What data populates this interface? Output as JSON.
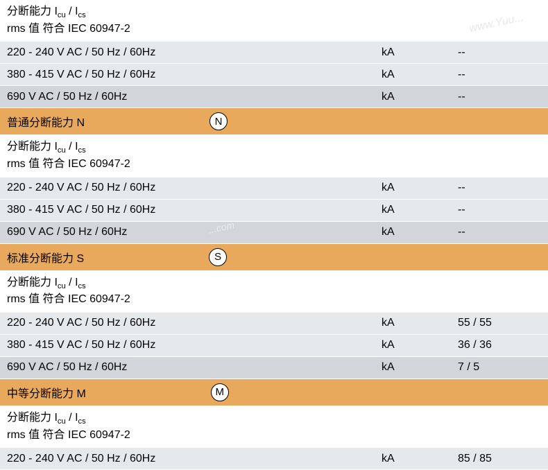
{
  "colors": {
    "orange_bg": "#e8a95c",
    "gray_light_bg": "#e6e9ec",
    "gray_dark_bg": "#d2d6db",
    "white_bg": "#ffffff",
    "text_color": "#000000"
  },
  "typography": {
    "font_family": "Arial, Microsoft YaHei, sans-serif",
    "base_fontsize": 16,
    "sub_fontsize": 11
  },
  "sections": [
    {
      "type": "header",
      "line1_prefix": "分断能力 I",
      "line1_sub1": "cu",
      "line1_mid": " / I",
      "line1_sub2": "cs",
      "line2": "rms 值 符合 IEC 60947-2"
    },
    {
      "type": "data",
      "rows": [
        {
          "label": "220 - 240 V AC / 50 Hz / 60Hz",
          "unit": "kA",
          "value": "--",
          "bg": "light"
        },
        {
          "label": "380 - 415 V AC / 50 Hz / 60Hz",
          "unit": "kA",
          "value": "--",
          "bg": "light"
        },
        {
          "label": "690 V AC / 50 Hz / 60Hz",
          "unit": "kA",
          "value": "--",
          "bg": "dark"
        }
      ]
    },
    {
      "type": "orange_header",
      "title": "普通分断能力 N",
      "icon_letter": "N"
    },
    {
      "type": "header",
      "line1_prefix": "分断能力 I",
      "line1_sub1": "cu",
      "line1_mid": " / I",
      "line1_sub2": "cs",
      "line2": "rms 值 符合 IEC 60947-2"
    },
    {
      "type": "data",
      "rows": [
        {
          "label": "220 - 240 V AC / 50 Hz / 60Hz",
          "unit": "kA",
          "value": "--",
          "bg": "light"
        },
        {
          "label": "380 - 415 V AC / 50 Hz / 60Hz",
          "unit": "kA",
          "value": "--",
          "bg": "light"
        },
        {
          "label": "690 V AC / 50 Hz / 60Hz",
          "unit": "kA",
          "value": "--",
          "bg": "dark"
        }
      ]
    },
    {
      "type": "orange_header",
      "title": "标准分断能力 S",
      "icon_letter": "S"
    },
    {
      "type": "header",
      "line1_prefix": "分断能力 I",
      "line1_sub1": "cu",
      "line1_mid": " / I",
      "line1_sub2": "cs",
      "line2": "rms 值 符合 IEC 60947-2"
    },
    {
      "type": "data",
      "rows": [
        {
          "label": "220 - 240 V AC / 50 Hz / 60Hz",
          "unit": "kA",
          "value": "55 / 55",
          "bg": "light"
        },
        {
          "label": "380 - 415 V AC / 50 Hz / 60Hz",
          "unit": "kA",
          "value": "36 / 36",
          "bg": "light"
        },
        {
          "label": "690 V AC / 50 Hz / 60Hz",
          "unit": "kA",
          "value": "7 / 5",
          "bg": "dark"
        }
      ]
    },
    {
      "type": "orange_header",
      "title": "中等分断能力 M",
      "icon_letter": "M"
    },
    {
      "type": "header",
      "line1_prefix": "分断能力 I",
      "line1_sub1": "cu",
      "line1_mid": " / I",
      "line1_sub2": "cs",
      "line2": "rms 值 符合 IEC 60947-2"
    },
    {
      "type": "data",
      "rows": [
        {
          "label": "220 - 240 V AC / 50 Hz / 60Hz",
          "unit": "kA",
          "value": "85 / 85",
          "bg": "light"
        }
      ]
    }
  ],
  "watermarks": {
    "wm1": "www.Yuu...",
    "wm2": "...com"
  }
}
